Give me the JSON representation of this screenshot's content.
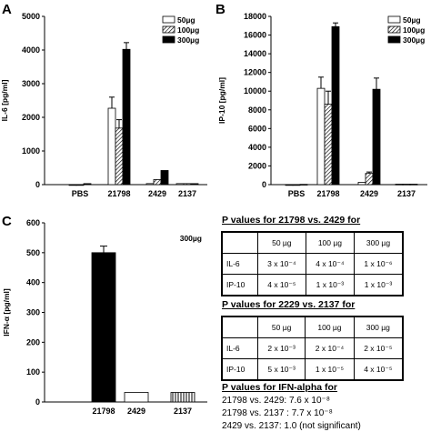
{
  "panels": {
    "A": {
      "letter": "A",
      "ylabel": "IL-6 [pg/ml]",
      "yticks": [
        "0",
        "1000",
        "2000",
        "3000",
        "4000",
        "5000"
      ],
      "categories": [
        "PBS",
        "21798",
        "2429",
        "2137"
      ],
      "legend": [
        "50µg",
        "100µg",
        "300µg"
      ]
    },
    "B": {
      "letter": "B",
      "ylabel": "IP-10 [pg/ml]",
      "yticks": [
        "0",
        "2000",
        "4000",
        "6000",
        "8000",
        "10000",
        "12000",
        "14000",
        "16000",
        "18000"
      ],
      "categories": [
        "PBS",
        "21798",
        "2429",
        "2137"
      ],
      "legend": [
        "50µg",
        "100µg",
        "300µg"
      ]
    },
    "C": {
      "letter": "C",
      "ylabel": "IFN-α [pg/ml]",
      "yticks": [
        "0",
        "100",
        "200",
        "300",
        "400",
        "500",
        "600"
      ],
      "categories": [
        "21798",
        "2429",
        "2137"
      ],
      "annotation": "300µg"
    }
  },
  "chart_data": [
    {
      "type": "bar",
      "ylabel": "IL-6 [pg/ml]",
      "ylim": [
        0,
        5000
      ],
      "categories": [
        "PBS",
        "21798",
        "2429",
        "2137"
      ],
      "series": [
        {
          "name": "50µg",
          "values": [
            0,
            2270,
            30,
            30
          ],
          "errors": [
            0,
            330,
            0,
            0
          ]
        },
        {
          "name": "100µg",
          "values": [
            0,
            1680,
            150,
            30
          ],
          "errors": [
            0,
            250,
            0,
            0
          ]
        },
        {
          "name": "300µg",
          "values": [
            30,
            4020,
            420,
            30
          ],
          "errors": [
            0,
            200,
            0,
            0
          ]
        }
      ],
      "legend": "top-right"
    },
    {
      "type": "bar",
      "ylabel": "IP-10 [pg/ml]",
      "ylim": [
        0,
        18000
      ],
      "categories": [
        "PBS",
        "21798",
        "2429",
        "2137"
      ],
      "series": [
        {
          "name": "50µg",
          "values": [
            0,
            10300,
            250,
            50
          ],
          "errors": [
            0,
            1200,
            0,
            0
          ]
        },
        {
          "name": "100µg",
          "values": [
            0,
            8600,
            1200,
            50
          ],
          "errors": [
            0,
            1400,
            150,
            0
          ]
        },
        {
          "name": "300µg",
          "values": [
            30,
            16900,
            10200,
            50
          ],
          "errors": [
            0,
            400,
            1200,
            0
          ]
        }
      ],
      "legend": "top-right"
    },
    {
      "type": "bar",
      "ylabel": "IFN-α [pg/ml]",
      "ylim": [
        0,
        600
      ],
      "categories": [
        "21798",
        "2429",
        "2137"
      ],
      "values": [
        500,
        32,
        32
      ],
      "errors": [
        22,
        0,
        0
      ],
      "annotation": "300µg"
    }
  ],
  "pvalues": {
    "table1": {
      "title": "P values for 21798 vs. 2429 for",
      "header": [
        "",
        "50 µg",
        "100 µg",
        "300 µg"
      ],
      "rows": [
        [
          "IL-6",
          "3 x 10⁻⁴",
          "4 x 10⁻⁴",
          "1 x 10⁻⁶"
        ],
        [
          "IP-10",
          "4 x 10⁻⁵",
          "1 x 10⁻³",
          "1 x 10⁻³"
        ]
      ]
    },
    "table2": {
      "title": "P values for 2229 vs. 2137 for",
      "header": [
        "",
        "50 µg",
        "100 µg",
        "300 µg"
      ],
      "rows": [
        [
          "IL-6",
          "2 x 10⁻³",
          "2 x 10⁻⁴",
          "2 x 10⁻⁵"
        ],
        [
          "IP-10",
          "5 x 10⁻³",
          "1 x 10⁻⁵",
          "4 x 10⁻⁵"
        ]
      ]
    },
    "ifn": {
      "title": "P values for IFN-alpha for",
      "lines": [
        "21798 vs. 2429: 7.6 x 10⁻⁸",
        "21798 vs. 2137 : 7.7 x 10⁻⁸",
        "2429 vs. 2137: 1.0 (not significant)"
      ]
    }
  }
}
